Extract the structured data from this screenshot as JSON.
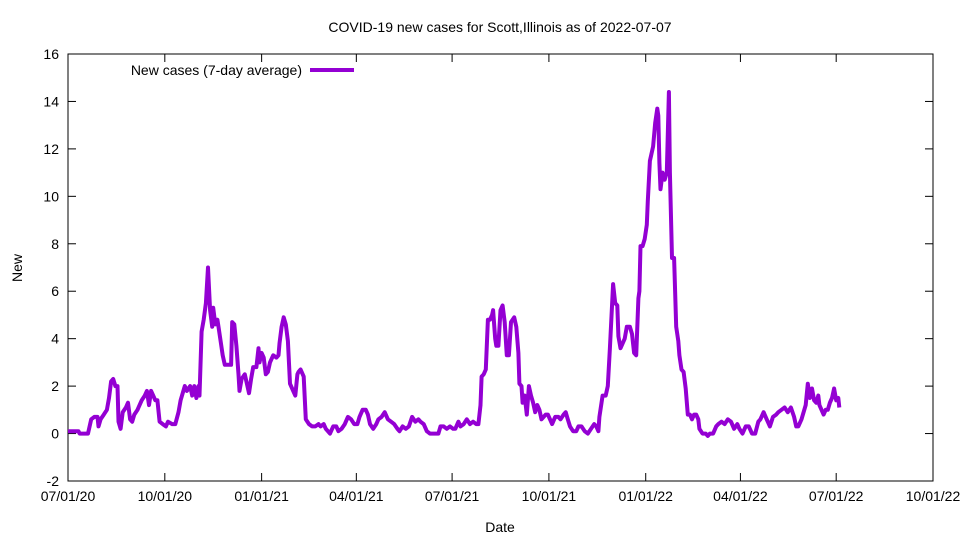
{
  "chart_data": {
    "type": "line",
    "title": "COVID-19 new cases for Scott,Illinois as of 2022-07-07",
    "xlabel": "Date",
    "ylabel": "New",
    "ylim": [
      -2,
      16
    ],
    "yticks": [
      -2,
      0,
      2,
      4,
      6,
      8,
      10,
      12,
      14,
      16
    ],
    "xlim_days": [
      0,
      822
    ],
    "xticks": [
      {
        "label": "07/01/20",
        "day": 0
      },
      {
        "label": "10/01/20",
        "day": 92
      },
      {
        "label": "01/01/21",
        "day": 184
      },
      {
        "label": "04/01/21",
        "day": 274
      },
      {
        "label": "07/01/21",
        "day": 365
      },
      {
        "label": "10/01/21",
        "day": 457
      },
      {
        "label": "01/01/22",
        "day": 549
      },
      {
        "label": "04/01/22",
        "day": 639
      },
      {
        "label": "07/01/22",
        "day": 730
      },
      {
        "label": "10/01/22",
        "day": 822
      }
    ],
    "legend": {
      "position": "top-left"
    },
    "grid": false,
    "series": [
      {
        "name": "New cases (7-day average)",
        "color": "#9400d3",
        "x_days": [
          0,
          10,
          11,
          19,
          22,
          25,
          28,
          29,
          31,
          34,
          37,
          39,
          41,
          43,
          45,
          47,
          48,
          50,
          52,
          55,
          57,
          59,
          61,
          63,
          66,
          67,
          70,
          73,
          75,
          77,
          79,
          81,
          83,
          85,
          87,
          90,
          93,
          95,
          99,
          102,
          105,
          107,
          109,
          111,
          113,
          116,
          118,
          120,
          122,
          124,
          125,
          127,
          129,
          131,
          133,
          135,
          137,
          138,
          140,
          142,
          143,
          145,
          147,
          149,
          152,
          155,
          156,
          158,
          160,
          162,
          163,
          165,
          168,
          170,
          172,
          174,
          176,
          179,
          181,
          182,
          184,
          186,
          188,
          190,
          192,
          195,
          198,
          200,
          201,
          203,
          205,
          207,
          209,
          211,
          214,
          216,
          218,
          219,
          221,
          224,
          226,
          229,
          232,
          235,
          238,
          240,
          243,
          245,
          247,
          249,
          252,
          255,
          257,
          260,
          263,
          266,
          269,
          272,
          275,
          277,
          280,
          283,
          285,
          287,
          290,
          293,
          295,
          298,
          301,
          304,
          307,
          310,
          313,
          315,
          318,
          321,
          324,
          327,
          330,
          333,
          335,
          338,
          341,
          344,
          348,
          352,
          354,
          357,
          360,
          363,
          366,
          368,
          371,
          373,
          376,
          379,
          382,
          385,
          388,
          390,
          392,
          393,
          395,
          397,
          399,
          401,
          403,
          404,
          406,
          407,
          409,
          411,
          413,
          415,
          417,
          419,
          421,
          424,
          426,
          428,
          429,
          431,
          432,
          434,
          436,
          438,
          440,
          442,
          444,
          446,
          448,
          450,
          452,
          454,
          456,
          458,
          460,
          463,
          466,
          468,
          471,
          473,
          475,
          477,
          480,
          483,
          485,
          488,
          491,
          494,
          497,
          500,
          502,
          504,
          505,
          508,
          511,
          513,
          515,
          518,
          520,
          522,
          523,
          525,
          527,
          529,
          531,
          534,
          536,
          538,
          540,
          542,
          543,
          544,
          546,
          548,
          550,
          551,
          553,
          554,
          556,
          558,
          560,
          561,
          562,
          563,
          565,
          567,
          569,
          571,
          572,
          574,
          576,
          578,
          580,
          581,
          583,
          585,
          587,
          589,
          591,
          593,
          595,
          597,
          599,
          600,
          603,
          606,
          608,
          610,
          613,
          616,
          618,
          621,
          624,
          627,
          630,
          633,
          636,
          638,
          641,
          644,
          647,
          650,
          653,
          656,
          658,
          661,
          664,
          667,
          670,
          673,
          675,
          678,
          681,
          684,
          687,
          690,
          692,
          694,
          697,
          699,
          701,
          703,
          705,
          707,
          709,
          711,
          713,
          714,
          716,
          718,
          720,
          722,
          724,
          726,
          728,
          730,
          732,
          733
        ],
        "values": [
          0.1,
          0.1,
          0,
          0,
          0.6,
          0.7,
          0.7,
          0.3,
          0.6,
          0.8,
          1.0,
          1.5,
          2.2,
          2.3,
          2.0,
          2.0,
          0.5,
          0.2,
          0.9,
          1.1,
          1.3,
          0.6,
          0.5,
          0.8,
          1.0,
          1.1,
          1.4,
          1.6,
          1.8,
          1.2,
          1.8,
          1.6,
          1.4,
          1.4,
          0.5,
          0.4,
          0.3,
          0.5,
          0.4,
          0.4,
          0.9,
          1.4,
          1.7,
          2.0,
          1.8,
          2.0,
          1.6,
          2.0,
          1.5,
          2.0,
          1.6,
          4.3,
          4.8,
          5.5,
          7.0,
          5.2,
          4.5,
          5.3,
          4.6,
          4.8,
          4.5,
          3.9,
          3.3,
          2.9,
          2.9,
          2.9,
          4.7,
          4.6,
          3.7,
          2.5,
          1.8,
          2.3,
          2.5,
          2.1,
          1.7,
          2.3,
          2.8,
          2.8,
          3.6,
          3.0,
          3.4,
          3.2,
          2.5,
          2.6,
          3.0,
          3.3,
          3.2,
          3.3,
          3.8,
          4.5,
          4.9,
          4.6,
          3.9,
          2.1,
          1.8,
          1.6,
          2.5,
          2.6,
          2.7,
          2.4,
          0.6,
          0.4,
          0.3,
          0.3,
          0.4,
          0.3,
          0.4,
          0.2,
          0.1,
          0.0,
          0.3,
          0.3,
          0.1,
          0.2,
          0.4,
          0.7,
          0.6,
          0.4,
          0.4,
          0.7,
          1.0,
          1.0,
          0.8,
          0.4,
          0.2,
          0.4,
          0.6,
          0.7,
          0.9,
          0.6,
          0.5,
          0.4,
          0.2,
          0.1,
          0.3,
          0.2,
          0.3,
          0.7,
          0.5,
          0.6,
          0.5,
          0.4,
          0.1,
          0.0,
          0.0,
          0.0,
          0.3,
          0.3,
          0.2,
          0.3,
          0.2,
          0.2,
          0.5,
          0.3,
          0.4,
          0.6,
          0.4,
          0.5,
          0.4,
          0.4,
          1.2,
          2.4,
          2.5,
          2.7,
          4.8,
          4.8,
          5.0,
          5.2,
          4.0,
          3.7,
          3.7,
          5.2,
          5.4,
          4.7,
          3.3,
          3.3,
          4.7,
          4.9,
          4.5,
          3.4,
          2.1,
          2.0,
          1.3,
          1.6,
          0.8,
          2.0,
          1.6,
          1.3,
          0.9,
          1.2,
          1.0,
          0.6,
          0.7,
          0.8,
          0.8,
          0.6,
          0.4,
          0.7,
          0.7,
          0.6,
          0.8,
          0.9,
          0.6,
          0.3,
          0.1,
          0.1,
          0.3,
          0.3,
          0.1,
          0.0,
          0.2,
          0.4,
          0.3,
          0.1,
          0.7,
          1.6,
          1.6,
          2.0,
          3.6,
          6.3,
          5.5,
          5.4,
          4.1,
          3.6,
          3.8,
          4.0,
          4.5,
          4.5,
          4.2,
          3.4,
          3.3,
          5.7,
          6.0,
          7.9,
          7.9,
          8.2,
          8.8,
          9.8,
          11.5,
          11.7,
          12.1,
          13.1,
          13.7,
          13.4,
          11.4,
          10.3,
          11.0,
          10.7,
          11.0,
          14.4,
          11.0,
          7.4,
          7.4,
          4.5,
          3.9,
          3.3,
          2.7,
          2.6,
          1.9,
          0.8,
          0.8,
          0.6,
          0.8,
          0.8,
          0.6,
          0.2,
          0.0,
          0.0,
          -0.1,
          0.0,
          0.0,
          0.3,
          0.4,
          0.5,
          0.4,
          0.6,
          0.5,
          0.2,
          0.4,
          0.2,
          0.0,
          0.3,
          0.3,
          0.0,
          0.0,
          0.5,
          0.6,
          0.9,
          0.6,
          0.3,
          0.7,
          0.8,
          0.9,
          1.0,
          1.1,
          0.9,
          1.1,
          0.7,
          0.3,
          0.3,
          0.6,
          0.9,
          1.2,
          2.1,
          1.5,
          1.9,
          1.4,
          1.3,
          1.6,
          1.2,
          1.0,
          0.8,
          1.0,
          1.0,
          1.3,
          1.5,
          1.9,
          1.4,
          1.5,
          1.1
        ]
      }
    ]
  }
}
